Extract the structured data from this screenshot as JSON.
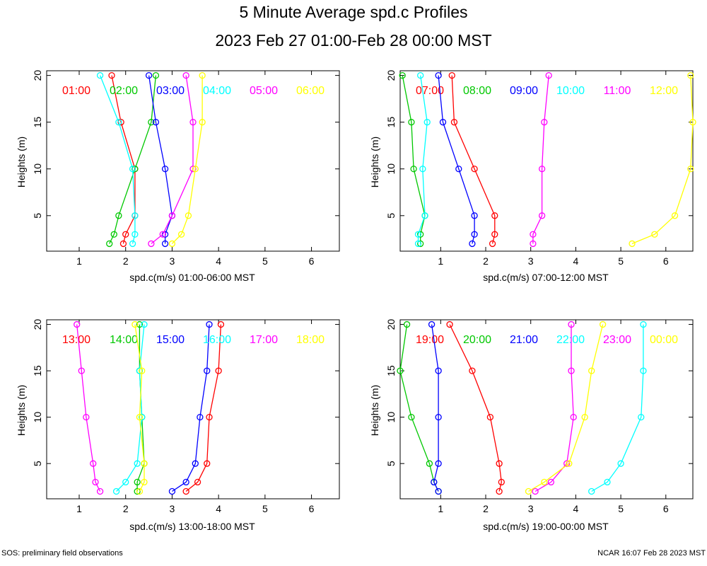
{
  "header": {
    "title": "5 Minute Average spd.c Profiles",
    "subtitle": "2023 Feb 27 01:00-Feb 28 00:00 MST"
  },
  "footer": {
    "left": "SOS: preliminary field observations",
    "right": "NCAR 16:07 Feb 28 2023 MST"
  },
  "colors": [
    "#ff0000",
    "#00c800",
    "#0000ff",
    "#00ffff",
    "#ff00ff",
    "#ffff00"
  ],
  "chart_data": [
    {
      "type": "line",
      "xlabel": "spd.c(m/s) 01:00-06:00 MST",
      "ylabel": "Heights (m)",
      "xlim": [
        0.3,
        6.6
      ],
      "ylim": [
        1.2,
        20.5
      ],
      "xticks": [
        1,
        2,
        3,
        4,
        5,
        6
      ],
      "yticks": [
        5,
        10,
        15,
        20
      ],
      "heights": [
        2,
        3,
        5,
        10,
        15,
        20
      ],
      "series": [
        {
          "name": "01:00",
          "values": [
            1.95,
            2.0,
            2.2,
            2.2,
            1.9,
            1.7
          ]
        },
        {
          "name": "02:00",
          "values": [
            1.65,
            1.75,
            1.85,
            2.2,
            2.55,
            2.65
          ]
        },
        {
          "name": "03:00",
          "values": [
            2.85,
            2.85,
            3.0,
            2.85,
            2.65,
            2.5
          ]
        },
        {
          "name": "04:00",
          "values": [
            2.15,
            2.2,
            2.2,
            2.15,
            1.85,
            1.45
          ]
        },
        {
          "name": "05:00",
          "values": [
            2.55,
            2.8,
            3.0,
            3.45,
            3.45,
            3.3
          ]
        },
        {
          "name": "06:00",
          "values": [
            3.0,
            3.2,
            3.35,
            3.5,
            3.65,
            3.65
          ]
        }
      ]
    },
    {
      "type": "line",
      "xlabel": "spd.c(m/s) 07:00-12:00 MST",
      "ylabel": "Heights (m)",
      "xlim": [
        0.1,
        6.6
      ],
      "ylim": [
        1.2,
        20.5
      ],
      "xticks": [
        1,
        2,
        3,
        4,
        5,
        6
      ],
      "yticks": [
        5,
        10,
        15,
        20
      ],
      "heights": [
        2,
        3,
        5,
        10,
        15,
        20
      ],
      "series": [
        {
          "name": "07:00",
          "values": [
            2.15,
            2.2,
            2.2,
            1.75,
            1.3,
            1.25
          ]
        },
        {
          "name": "08:00",
          "values": [
            0.55,
            0.55,
            0.65,
            0.4,
            0.35,
            0.15
          ]
        },
        {
          "name": "09:00",
          "values": [
            1.7,
            1.75,
            1.75,
            1.4,
            1.05,
            0.95
          ]
        },
        {
          "name": "10:00",
          "values": [
            0.5,
            0.5,
            0.65,
            0.6,
            0.7,
            0.55
          ]
        },
        {
          "name": "11:00",
          "values": [
            3.05,
            3.05,
            3.25,
            3.25,
            3.3,
            3.4
          ]
        },
        {
          "name": "12:00",
          "values": [
            5.25,
            5.75,
            6.2,
            6.55,
            6.6,
            6.55
          ]
        }
      ]
    },
    {
      "type": "line",
      "xlabel": "spd.c(m/s) 13:00-18:00 MST",
      "ylabel": "Heights (m)",
      "xlim": [
        0.3,
        6.6
      ],
      "ylim": [
        1.2,
        20.5
      ],
      "xticks": [
        1,
        2,
        3,
        4,
        5,
        6
      ],
      "yticks": [
        5,
        10,
        15,
        20
      ],
      "heights": [
        2,
        3,
        5,
        10,
        15,
        20
      ],
      "series": [
        {
          "name": "13:00",
          "values": [
            3.3,
            3.55,
            3.75,
            3.8,
            4.0,
            4.05
          ]
        },
        {
          "name": "14:00",
          "values": [
            2.25,
            2.25,
            2.4,
            2.35,
            2.3,
            2.3
          ]
        },
        {
          "name": "15:00",
          "values": [
            3.0,
            3.3,
            3.5,
            3.6,
            3.75,
            3.8
          ]
        },
        {
          "name": "16:00",
          "values": [
            1.8,
            2.0,
            2.25,
            2.35,
            2.3,
            2.4
          ]
        },
        {
          "name": "17:00",
          "values": [
            1.45,
            1.35,
            1.3,
            1.15,
            1.05,
            0.95
          ]
        },
        {
          "name": "18:00",
          "values": [
            2.3,
            2.4,
            2.4,
            2.3,
            2.35,
            2.2
          ]
        }
      ]
    },
    {
      "type": "line",
      "xlabel": "spd.c(m/s) 19:00-00:00 MST",
      "ylabel": "Heights (m)",
      "xlim": [
        0.1,
        6.6
      ],
      "ylim": [
        1.2,
        20.5
      ],
      "xticks": [
        1,
        2,
        3,
        4,
        5,
        6
      ],
      "yticks": [
        5,
        10,
        15,
        20
      ],
      "heights": [
        2,
        3,
        5,
        10,
        15,
        20
      ],
      "series": [
        {
          "name": "19:00",
          "values": [
            2.3,
            2.35,
            2.3,
            2.1,
            1.7,
            1.2
          ]
        },
        {
          "name": "20:00",
          "values": [
            0.95,
            0.85,
            0.75,
            0.35,
            0.1,
            0.25
          ]
        },
        {
          "name": "21:00",
          "values": [
            0.95,
            0.85,
            0.95,
            0.95,
            0.95,
            0.8
          ]
        },
        {
          "name": "22:00",
          "values": [
            4.35,
            4.7,
            5.0,
            5.45,
            5.5,
            5.5
          ]
        },
        {
          "name": "23:00",
          "values": [
            3.1,
            3.45,
            3.8,
            3.95,
            3.9,
            3.9
          ]
        },
        {
          "name": "00:00",
          "values": [
            2.95,
            3.3,
            3.85,
            4.2,
            4.35,
            4.6
          ]
        }
      ]
    }
  ]
}
